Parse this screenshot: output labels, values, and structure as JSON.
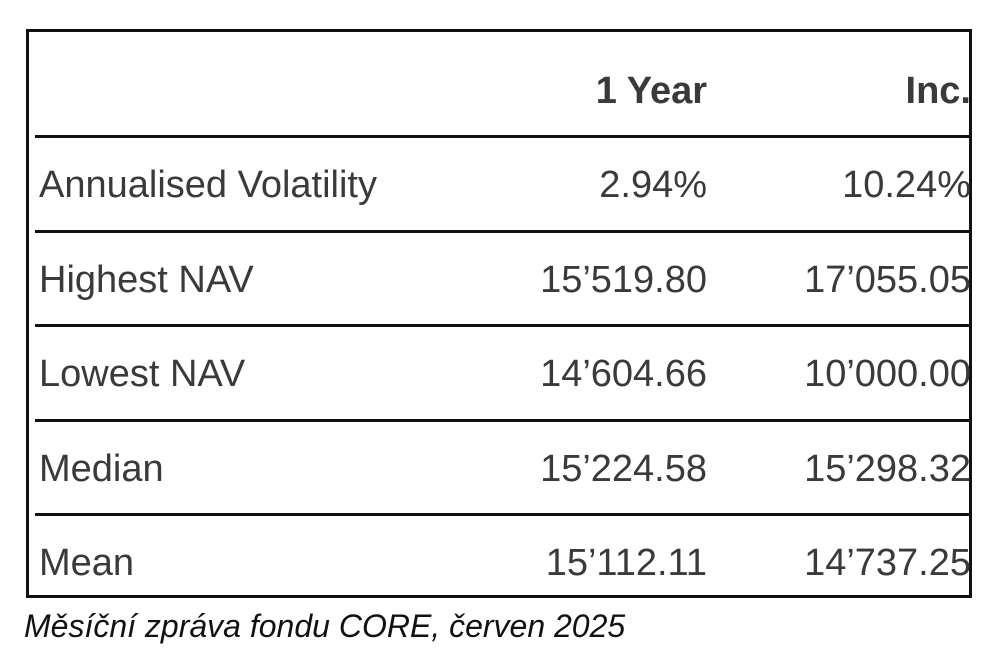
{
  "table": {
    "headers": [
      "",
      "1 Year",
      "Inc."
    ],
    "rows": [
      {
        "label": "Annualised Volatility",
        "year1": "2.94%",
        "inc": "10.24%"
      },
      {
        "label": "Highest NAV",
        "year1": "15’519.80",
        "inc": "17’055.05"
      },
      {
        "label": "Lowest NAV",
        "year1": "14’604.66",
        "inc": "10’000.00"
      },
      {
        "label": "Median",
        "year1": "15’224.58",
        "inc": "15’298.32"
      },
      {
        "label": "Mean",
        "year1": "15’112.11",
        "inc": "14’737.25"
      }
    ]
  },
  "caption": "Měsíční zpráva fondu CORE, červen 2025"
}
